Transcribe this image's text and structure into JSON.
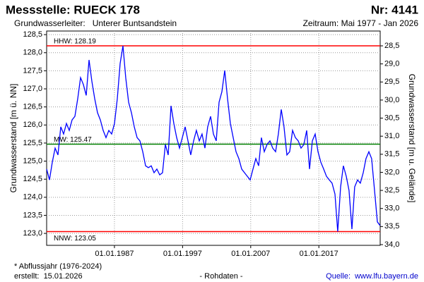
{
  "chart_data": {
    "type": "line",
    "title": "Messstelle: RUECK 178",
    "number": "Nr: 4141",
    "subtitle": "Grundwasserleiter:   Unterer Buntsandstein",
    "period": "Zeitraum: Mai 1977 - Jan 2026",
    "y_label": "Grundwasserstand [m ü. NN]",
    "y2_label": "Grundwasserstand [m u. Gelände]",
    "footnote": "* Abflussjahr (1976-2024)",
    "created": "erstellt:  15.01.2026",
    "data_kind": "- Rohdaten -",
    "source": "Quelle:  www.lfu.bayern.de",
    "grid": true,
    "xlim": [
      1977.05,
      2026.0
    ],
    "xticks": [
      {
        "value": 1987,
        "label": "01.01.1987"
      },
      {
        "value": 1997,
        "label": "01.01.1997"
      },
      {
        "value": 2007,
        "label": "01.01.2007"
      },
      {
        "value": 2017,
        "label": "01.01.2017"
      }
    ],
    "ylim": [
      122.67,
      128.6
    ],
    "yticks": [
      {
        "value": 123.0,
        "label": "123,0"
      },
      {
        "value": 123.5,
        "label": "123,5"
      },
      {
        "value": 124.0,
        "label": "124,0"
      },
      {
        "value": 124.5,
        "label": "124,5"
      },
      {
        "value": 125.0,
        "label": "125,0"
      },
      {
        "value": 125.5,
        "label": "125,5"
      },
      {
        "value": 126.0,
        "label": "126,0"
      },
      {
        "value": 126.5,
        "label": "126,5"
      },
      {
        "value": 127.0,
        "label": "127,0"
      },
      {
        "value": 127.5,
        "label": "127,5"
      },
      {
        "value": 128.0,
        "label": "128,0"
      },
      {
        "value": 128.5,
        "label": "128,5"
      }
    ],
    "y2lim": [
      34.02,
      28.09
    ],
    "y2ticks": [
      {
        "value": 28.5,
        "label": "28,5"
      },
      {
        "value": 29.0,
        "label": "29,0"
      },
      {
        "value": 29.5,
        "label": "29,5"
      },
      {
        "value": 30.0,
        "label": "30,0"
      },
      {
        "value": 30.5,
        "label": "30,5"
      },
      {
        "value": 31.0,
        "label": "31,0"
      },
      {
        "value": 31.5,
        "label": "31,5"
      },
      {
        "value": 32.0,
        "label": "32,0"
      },
      {
        "value": 32.5,
        "label": "32,5"
      },
      {
        "value": 33.0,
        "label": "33,0"
      },
      {
        "value": 33.5,
        "label": "33,5"
      },
      {
        "value": 34.0,
        "label": "34,0"
      }
    ],
    "reference_lines": [
      {
        "label": "HHW: 128.19",
        "value": 128.19,
        "color": "#ff0000"
      },
      {
        "label": "MW: 125.47",
        "value": 125.47,
        "color": "#008000"
      },
      {
        "label": "NNW: 123.05",
        "value": 123.05,
        "color": "#ff0000"
      }
    ],
    "x": [
      1977.05,
      1977.46,
      1977.88,
      1978.29,
      1978.71,
      1979.12,
      1979.54,
      1979.95,
      1980.37,
      1980.78,
      1981.2,
      1981.61,
      1982.03,
      1982.44,
      1982.86,
      1983.27,
      1983.69,
      1984.1,
      1984.52,
      1984.93,
      1985.35,
      1985.76,
      1986.18,
      1986.59,
      1987.01,
      1987.42,
      1987.84,
      1988.25,
      1988.66,
      1989.08,
      1989.49,
      1989.91,
      1990.32,
      1990.74,
      1991.15,
      1991.57,
      1991.98,
      1992.4,
      1992.81,
      1993.23,
      1993.64,
      1994.06,
      1994.47,
      1994.89,
      1995.3,
      1995.72,
      1996.13,
      1996.55,
      1996.96,
      1997.38,
      1997.79,
      1998.2,
      1998.62,
      1999.03,
      1999.45,
      1999.86,
      2000.28,
      2000.69,
      2001.11,
      2001.52,
      2001.94,
      2002.35,
      2002.77,
      2003.18,
      2003.6,
      2004.01,
      2004.43,
      2004.84,
      2005.26,
      2005.67,
      2006.09,
      2006.5,
      2006.92,
      2007.33,
      2007.75,
      2008.16,
      2008.57,
      2008.99,
      2009.4,
      2009.82,
      2010.23,
      2010.65,
      2011.06,
      2011.48,
      2011.89,
      2012.31,
      2012.72,
      2013.14,
      2013.55,
      2013.97,
      2014.38,
      2014.8,
      2015.21,
      2015.63,
      2016.04,
      2016.46,
      2016.87,
      2017.29,
      2017.7,
      2018.12,
      2018.53,
      2018.94,
      2019.36,
      2019.77,
      2020.19,
      2020.6,
      2021.02,
      2021.43,
      2021.85,
      2022.26,
      2022.68,
      2023.09,
      2023.51,
      2023.92,
      2024.34,
      2024.75,
      2025.17,
      2025.58,
      2025.98
    ],
    "series": [
      {
        "color": "#0000ff",
        "values": [
          124.78,
          124.48,
          124.97,
          125.36,
          125.17,
          125.95,
          125.75,
          126.04,
          125.85,
          126.14,
          126.24,
          126.73,
          127.31,
          127.12,
          126.82,
          127.8,
          127.21,
          126.73,
          126.34,
          126.14,
          125.85,
          125.65,
          125.85,
          125.75,
          126.04,
          126.73,
          127.7,
          128.19,
          127.31,
          126.63,
          126.34,
          125.95,
          125.65,
          125.56,
          125.26,
          124.87,
          124.82,
          124.87,
          124.68,
          124.78,
          124.62,
          124.68,
          125.46,
          125.17,
          126.53,
          126.04,
          125.65,
          125.36,
          125.65,
          125.95,
          125.56,
          125.17,
          125.56,
          125.85,
          125.56,
          125.75,
          125.36,
          125.95,
          126.24,
          125.75,
          125.56,
          126.63,
          126.92,
          127.51,
          126.73,
          126.04,
          125.65,
          125.26,
          125.07,
          124.78,
          124.68,
          124.58,
          124.48,
          124.78,
          125.07,
          124.87,
          125.65,
          125.26,
          125.46,
          125.56,
          125.36,
          125.26,
          125.75,
          126.43,
          125.95,
          125.17,
          125.26,
          125.85,
          125.65,
          125.56,
          125.36,
          125.46,
          125.85,
          124.78,
          125.56,
          125.75,
          125.26,
          124.97,
          124.78,
          124.58,
          124.48,
          124.39,
          124.09,
          123.05,
          124.29,
          124.87,
          124.58,
          124.19,
          123.12,
          124.29,
          124.48,
          124.39,
          124.68,
          125.07,
          125.26,
          125.07,
          124.19,
          123.32,
          123.22
        ]
      }
    ]
  }
}
